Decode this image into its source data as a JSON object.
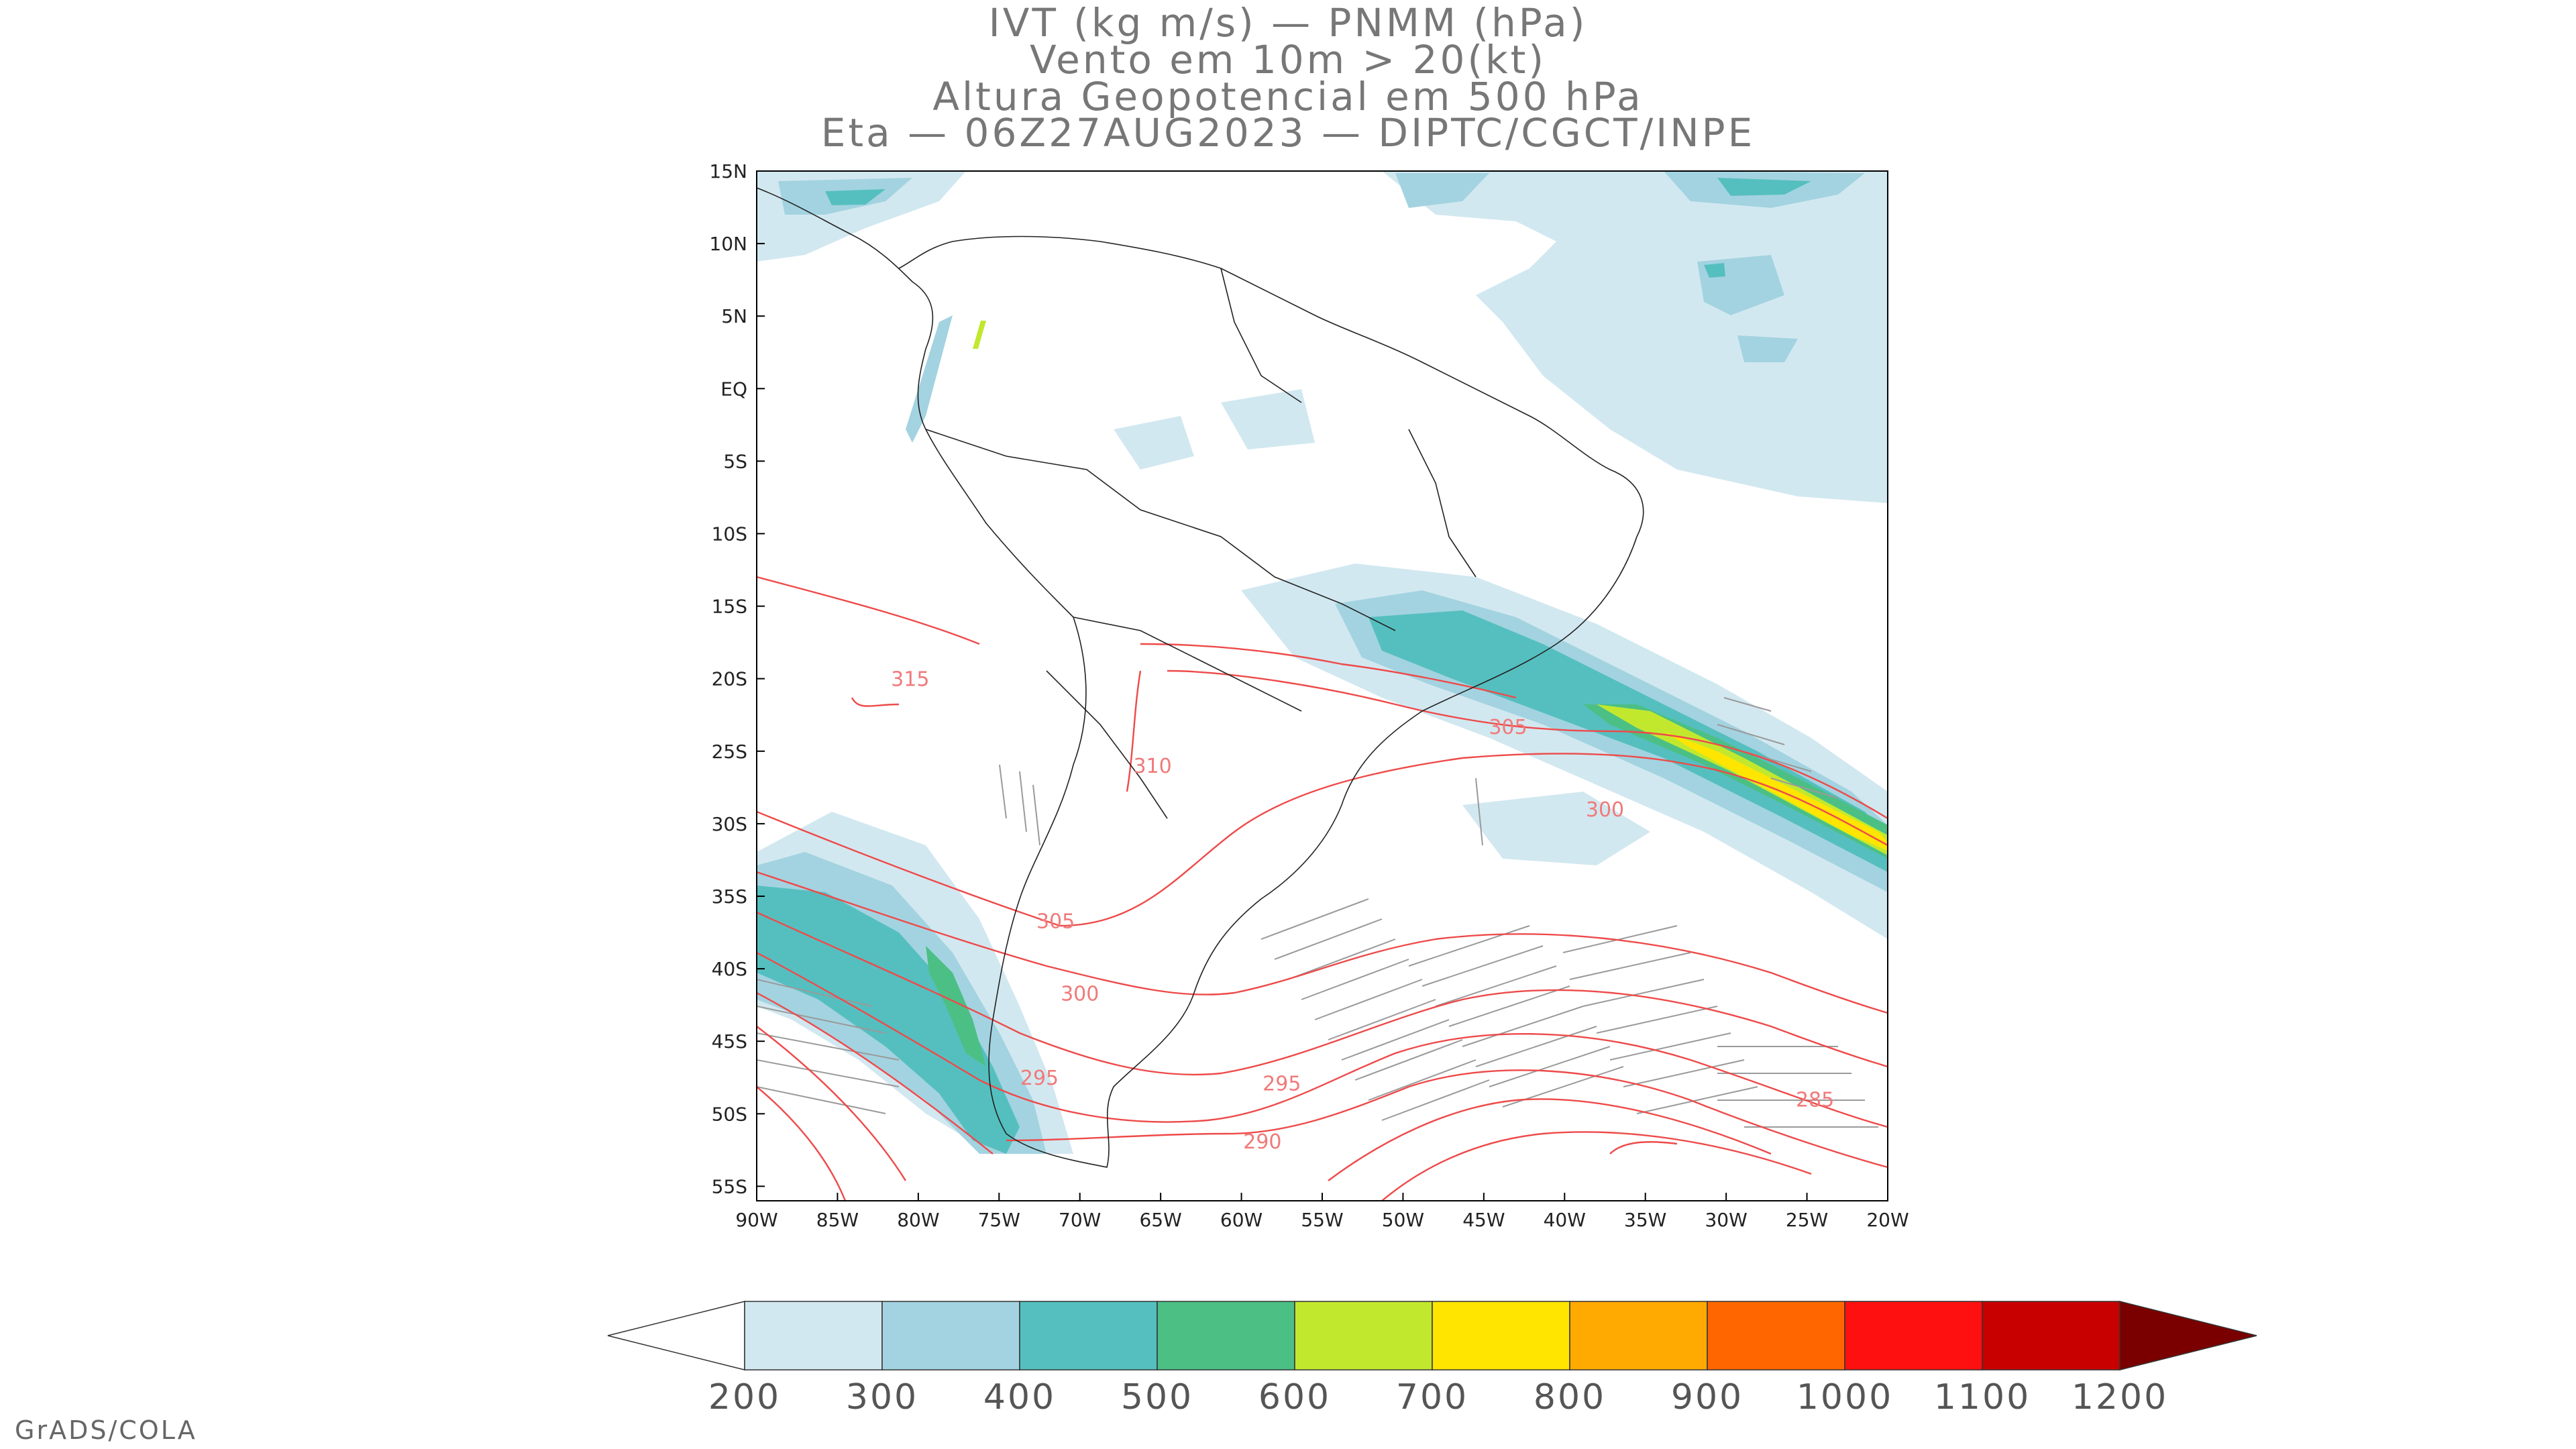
{
  "title": {
    "line1": "IVT (kg m/s) — PNMM (hPa)",
    "line2": "Vento em 10m > 20(kt)",
    "line3": "Altura Geopotencial em 500 hPa",
    "line4": "Eta — 06Z27AUG2023 — DIPTC/CGCT/INPE"
  },
  "axes": {
    "lat_labels": [
      "15N",
      "10N",
      "5N",
      "EQ",
      "5S",
      "10S",
      "15S",
      "20S",
      "25S",
      "30S",
      "35S",
      "40S",
      "45S",
      "50S",
      "55S"
    ],
    "lon_labels": [
      "90W",
      "85W",
      "80W",
      "75W",
      "70W",
      "65W",
      "60W",
      "55W",
      "50W",
      "45W",
      "40W",
      "35W",
      "30W",
      "25W",
      "20W"
    ]
  },
  "contours": {
    "labels": [
      {
        "text": "315",
        "lon": -80.5,
        "lat": -20.5
      },
      {
        "text": "310",
        "lon": -65.5,
        "lat": -26.5
      },
      {
        "text": "305",
        "lon": -43.5,
        "lat": -23.8
      },
      {
        "text": "300",
        "lon": -37.5,
        "lat": -29.5
      },
      {
        "text": "305",
        "lon": -71.5,
        "lat": -37.2
      },
      {
        "text": "300",
        "lon": -70,
        "lat": -42.2
      },
      {
        "text": "295",
        "lon": -57.5,
        "lat": -48.4
      },
      {
        "text": "295",
        "lon": -72.5,
        "lat": -48.0
      },
      {
        "text": "290",
        "lon": -58.7,
        "lat": -52.4
      },
      {
        "text": "285",
        "lon": -24.5,
        "lat": -49.5
      }
    ]
  },
  "colorbar": {
    "levels": [
      "200",
      "300",
      "400",
      "500",
      "600",
      "700",
      "800",
      "900",
      "1000",
      "1100",
      "1200"
    ],
    "colors": [
      "#ffffff",
      "#d2e8f0",
      "#a3d3e0",
      "#55bfbf",
      "#4cbf85",
      "#c2e82e",
      "#ffe500",
      "#ffaa00",
      "#ff6600",
      "#ff1010",
      "#c80000",
      "#7a0000"
    ]
  },
  "footer": "GrADS/COLA"
}
